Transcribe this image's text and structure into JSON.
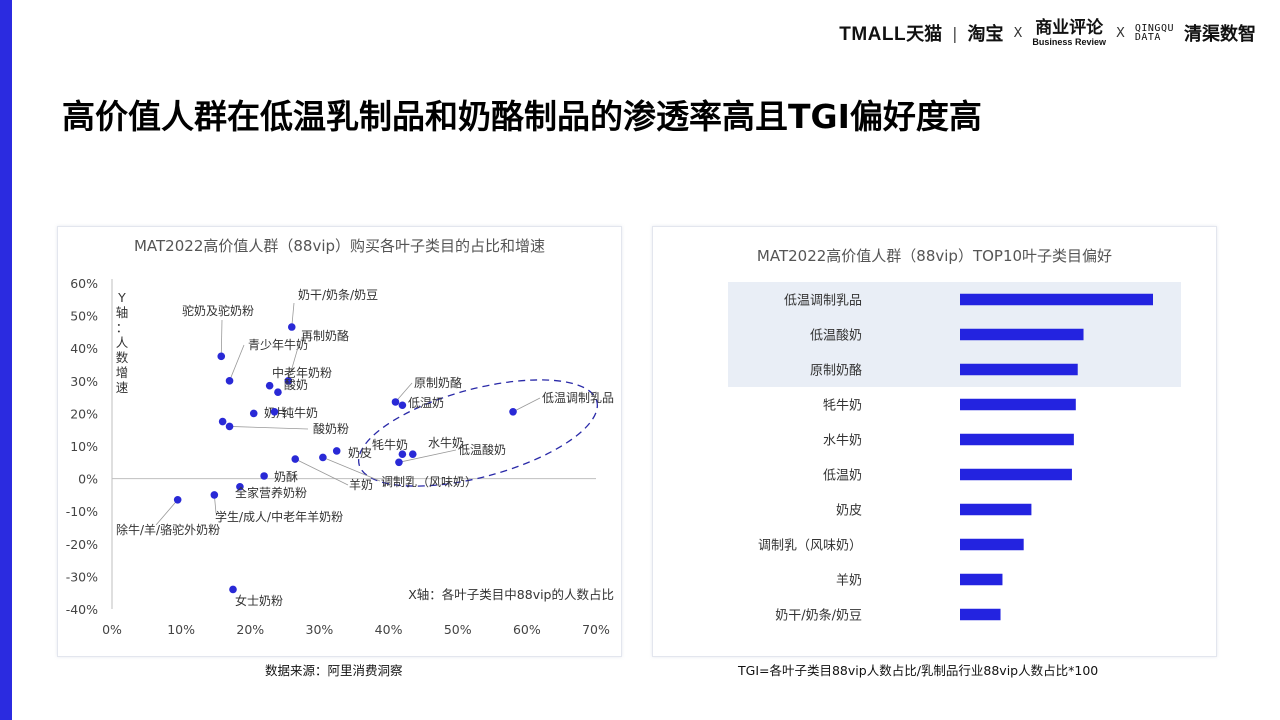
{
  "header": {
    "logos": {
      "tmall": "TMALL",
      "tmall_cn": "天猫",
      "taobao": "淘宝",
      "x": "X",
      "br_cn": "商业评论",
      "br_en": "Business Review",
      "qq_top": "QINGQU",
      "qq_bot": "DATA",
      "qq_cn": "清渠数智"
    }
  },
  "page": {
    "title": "高价值人群在低温乳制品和奶酪制品的渗透率高且TGI偏好度高"
  },
  "chart_data": [
    {
      "type": "scatter",
      "title": "MAT2022高价值人群（88vip）购买各叶子类目的占比和增速",
      "xlabel": "X轴：各叶子类目中88vip的人数占比",
      "ylabel": "Y轴：人数增速",
      "xlim": [
        0,
        70
      ],
      "ylim": [
        -40,
        60
      ],
      "x_ticks": [
        "0%",
        "10%",
        "20%",
        "30%",
        "40%",
        "50%",
        "60%",
        "70%"
      ],
      "y_ticks": [
        "60%",
        "50%",
        "40%",
        "30%",
        "20%",
        "10%",
        "0%",
        "-10%",
        "-20%",
        "-30%",
        "-40%"
      ],
      "points": [
        {
          "label": "奶干/奶条/奶豆",
          "x": 26,
          "y": 46.5
        },
        {
          "label": "驼奶及驼奶粉",
          "x": 15.8,
          "y": 37.5
        },
        {
          "label": "青少年牛奶",
          "x": 17,
          "y": 30
        },
        {
          "label": "再制奶酪",
          "x": 25.5,
          "y": 30
        },
        {
          "label": "中老年奶粉",
          "x": 22.8,
          "y": 28.5
        },
        {
          "label": "酸奶",
          "x": 24,
          "y": 26.5
        },
        {
          "label": "奶片",
          "x": 20.5,
          "y": 20
        },
        {
          "label": "纯牛奶",
          "x": 23.5,
          "y": 20.5
        },
        {
          "label": "",
          "x": 16,
          "y": 17.5
        },
        {
          "label": "酸奶粉",
          "x": 17,
          "y": 16
        },
        {
          "label": "原制奶酪",
          "x": 41,
          "y": 23.5
        },
        {
          "label": "低温奶",
          "x": 42,
          "y": 22.5
        },
        {
          "label": "低温调制乳品",
          "x": 58,
          "y": 20.5
        },
        {
          "label": "牦牛奶",
          "x": 42,
          "y": 7.5
        },
        {
          "label": "水牛奶",
          "x": 43.5,
          "y": 7.5
        },
        {
          "label": "低温酸奶",
          "x": 41.5,
          "y": 5
        },
        {
          "label": "奶皮",
          "x": 32.5,
          "y": 8.5
        },
        {
          "label": "调制乳（风味奶）",
          "x": 30.5,
          "y": 6.5
        },
        {
          "label": "羊奶",
          "x": 26.5,
          "y": 6
        },
        {
          "label": "奶酥",
          "x": 22,
          "y": 0.8
        },
        {
          "label": "全家营养奶粉",
          "x": 18.5,
          "y": -2.5
        },
        {
          "label": "学生/成人/中老年羊奶粉",
          "x": 14.8,
          "y": -5
        },
        {
          "label": "除牛/羊/骆驼外奶粉",
          "x": 9.5,
          "y": -6.5
        },
        {
          "label": "女士奶粉",
          "x": 17.5,
          "y": -34
        }
      ],
      "highlight": "dashed-ellipse around high-penetration group",
      "marker_color": "#2929d6"
    },
    {
      "type": "bar",
      "orientation": "horizontal",
      "title": "MAT2022高价值人群（88vip）TOP10叶子类目偏好",
      "categories": [
        "低温调制乳品",
        "低温酸奶",
        "原制奶酪",
        "牦牛奶",
        "水牛奶",
        "低温奶",
        "奶皮",
        "调制乳（风味奶）",
        "羊奶",
        "奶干/奶条/奶豆"
      ],
      "values": [
        100,
        64,
        61,
        60,
        59,
        58,
        37,
        33,
        22,
        21
      ],
      "highlighted_categories": [
        "低温调制乳品",
        "低温酸奶",
        "原制奶酪"
      ],
      "bar_color": "#2323e0",
      "highlight_bg": "#e9eef6"
    }
  ],
  "footer": {
    "source_left": "数据来源：阿里消费洞察",
    "source_right": "TGI=各叶子类目88vip人数占比/乳制品行业88vip人数占比*100"
  }
}
